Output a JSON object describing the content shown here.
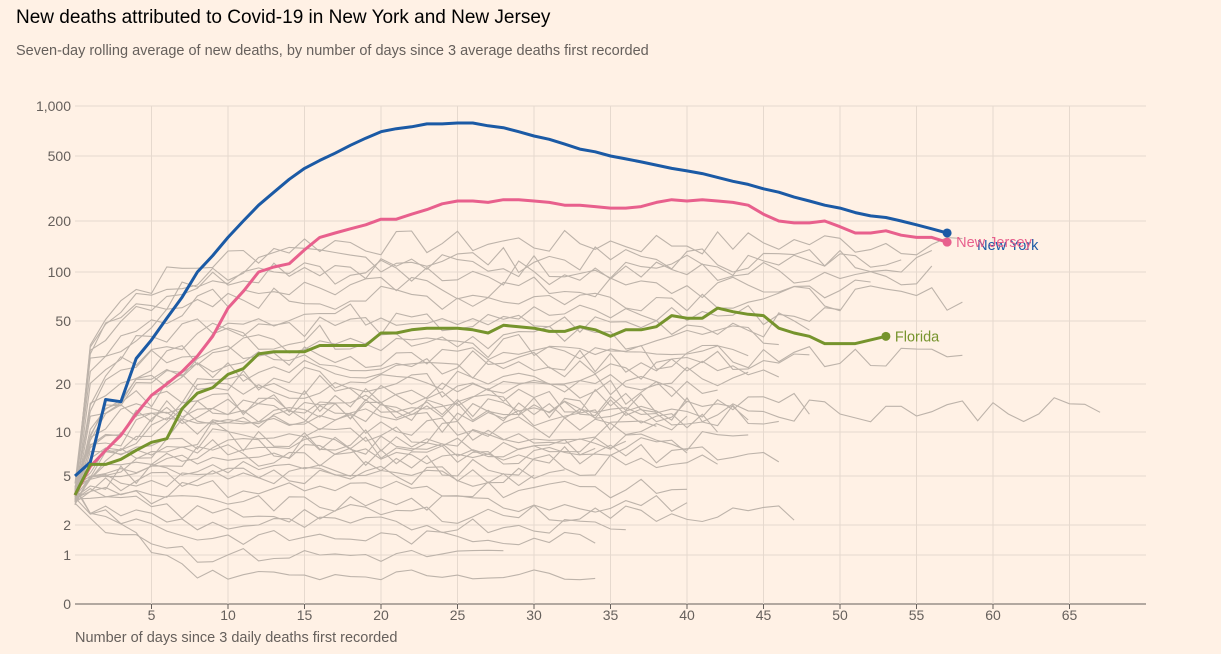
{
  "title": "New deaths attributed to Covid-19 in New York and New Jersey",
  "subtitle": "Seven-day rolling average of new deaths, by number of days since 3 average deaths first recorded",
  "chart_data": {
    "type": "line",
    "title": "New deaths attributed to Covid-19 in New York and New Jersey",
    "xlabel": "Number of days since 3 daily deaths first recorded",
    "ylabel": "",
    "yscale": "log",
    "xlim": [
      0,
      70
    ],
    "y_ticks": [
      {
        "value": 1000,
        "label": "1,000"
      },
      {
        "value": 500,
        "label": "500"
      },
      {
        "value": 200,
        "label": "200"
      },
      {
        "value": 100,
        "label": "100"
      },
      {
        "value": 50,
        "label": "50"
      },
      {
        "value": 20,
        "label": "20"
      },
      {
        "value": 10,
        "label": "10"
      },
      {
        "value": 5,
        "label": "5"
      },
      {
        "value": 2,
        "label": "2"
      },
      {
        "value": 1,
        "label": "1"
      },
      {
        "value": 0,
        "label": "0"
      }
    ],
    "x_ticks": [
      5,
      10,
      15,
      20,
      25,
      30,
      35,
      40,
      45,
      50,
      55,
      60,
      65
    ],
    "highlighted": [
      {
        "name": "New York",
        "color": "#1b5aa5",
        "label": "New York",
        "values": [
          5,
          6.2,
          16,
          15.5,
          29,
          38,
          52,
          70,
          100,
          125,
          160,
          200,
          250,
          300,
          360,
          420,
          470,
          520,
          580,
          640,
          700,
          730,
          750,
          780,
          780,
          790,
          790,
          760,
          740,
          700,
          660,
          630,
          590,
          550,
          530,
          500,
          480,
          460,
          440,
          420,
          405,
          390,
          370,
          350,
          335,
          315,
          300,
          280,
          265,
          250,
          240,
          225,
          215,
          210,
          200,
          190,
          180,
          170
        ]
      },
      {
        "name": "New Jersey",
        "color": "#e8608d",
        "label": "New Jersey",
        "values": [
          3.5,
          5.8,
          7.5,
          9.5,
          13,
          17,
          20,
          24,
          30,
          40,
          60,
          76,
          100,
          107,
          112,
          135,
          160,
          170,
          180,
          190,
          205,
          205,
          220,
          235,
          255,
          265,
          265,
          260,
          270,
          270,
          265,
          260,
          250,
          250,
          245,
          240,
          240,
          245,
          260,
          270,
          265,
          270,
          265,
          260,
          250,
          220,
          200,
          195,
          195,
          200,
          185,
          170,
          170,
          175,
          165,
          160,
          160,
          150
        ]
      },
      {
        "name": "Florida",
        "color": "#76942d",
        "label": "Florida",
        "values": [
          3.5,
          6,
          6,
          6.5,
          7.5,
          8.5,
          9,
          14,
          17.5,
          19,
          23,
          25,
          31,
          32,
          32,
          32,
          35,
          35,
          35,
          35,
          42,
          42,
          44,
          45,
          45,
          45,
          44,
          42,
          47,
          46,
          45,
          43,
          43,
          46,
          44,
          40,
          44,
          44,
          46,
          54,
          52,
          52,
          60,
          57,
          55,
          54,
          45,
          42,
          40,
          36,
          36,
          36,
          38,
          40
        ]
      }
    ],
    "background_series_note": "Other US states shown as thin grey lines"
  }
}
